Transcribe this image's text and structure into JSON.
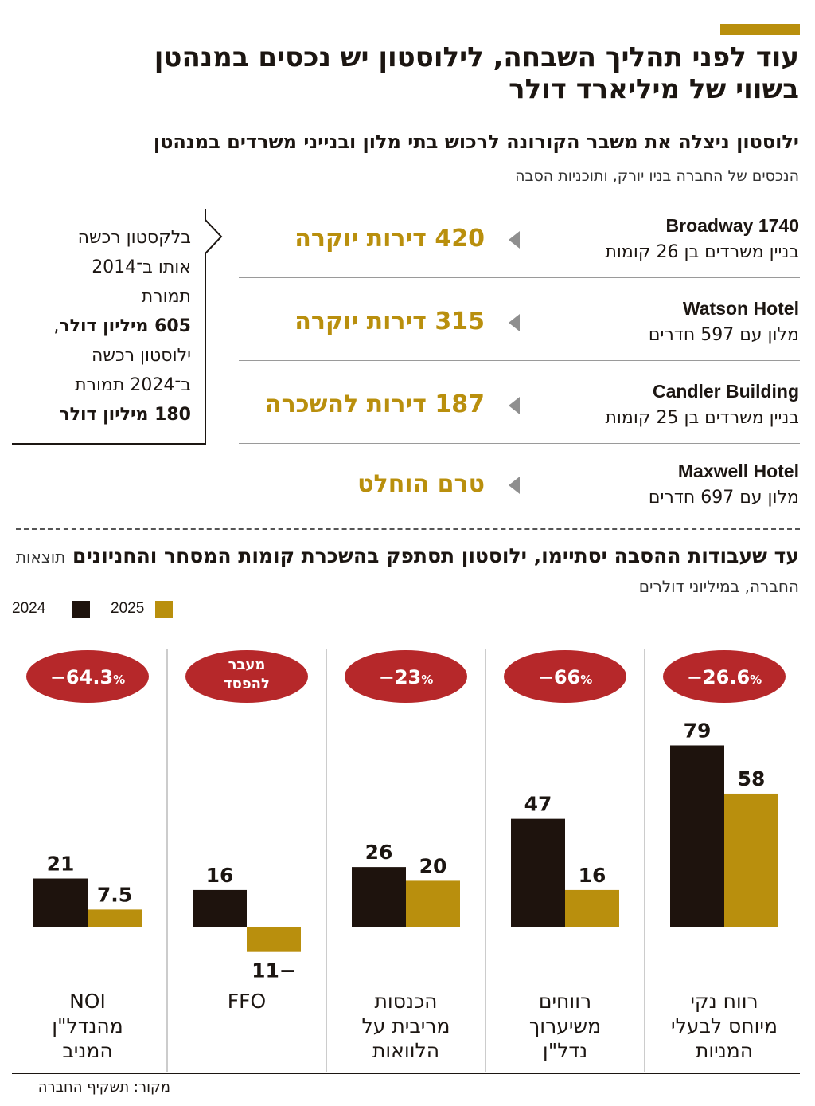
{
  "title": "עוד לפני תהליך השבחה, לילוסטון יש נכסים במנהטן בשווי של מיליארד דולר",
  "section1": {
    "title": "ילוסטון ניצלה את משבר הקורונה לרכוש בתי מלון ובנייני משרדים במנהטן",
    "note": "הנכסים של החברה בניו יורק, ותוכניות הסבה",
    "properties": [
      {
        "name": "Broadway 1740",
        "desc": "בניין משרדים בן 26 קומות",
        "plan": "420 דירות יוקרה"
      },
      {
        "name": "Watson Hotel",
        "desc": "מלון עם 597 חדרים",
        "plan": "315 דירות יוקרה"
      },
      {
        "name": "Candler Building",
        "desc": "בניין משרדים בן 25 קומות",
        "plan": "187 דירות להשכרה"
      },
      {
        "name": "Maxwell Hotel",
        "desc": "מלון עם 697 חדרים",
        "plan": "טרם הוחלט"
      }
    ],
    "callout": {
      "line1": "בלקסטון רכשה",
      "line2": "אותו ב־2014",
      "line3": "תמורת",
      "line4_bold": "605 מיליון דולר",
      "line4_rest": ",",
      "line5": "ילוסטון רכשה",
      "line6": "ב־2024 תמורת",
      "line7_bold": "180 מיליון דולר"
    }
  },
  "section2": {
    "title": "עד שעבודות ההסבה יסתיימו, ילוסטון תסתפק בהשכרת קומות המסחר והחניונים",
    "note": "תוצאות החברה, במיליוני דולרים"
  },
  "colors": {
    "y2024": "#1e130d",
    "y2025": "#b98f0d",
    "badge": "#b6282a",
    "accent": "#b98f0d"
  },
  "chart_data": {
    "type": "bar",
    "categories": [
      "רווח נקי מיוחס לבעלי המניות",
      "רווחים משיערוך נדל\"ן",
      "הכנסות מריבית על הלוואות",
      "FFO",
      "NOI מהנדל\"ן המניב"
    ],
    "category_lines": [
      [
        "רווח נקי",
        "מיוחס לבעלי",
        "המניות"
      ],
      [
        "רווחים",
        "משיערוך",
        "נדל\"ן"
      ],
      [
        "הכנסות",
        "מריבית על",
        "הלוואות"
      ],
      [
        "FFO"
      ],
      [
        "NOI",
        "מהנדל\"ן",
        "המניב"
      ]
    ],
    "series": [
      {
        "name": "2024",
        "values": [
          79,
          47,
          26,
          16,
          21
        ]
      },
      {
        "name": "2025",
        "values": [
          58,
          16,
          20,
          -11,
          7.5
        ]
      }
    ],
    "value_labels": {
      "2024": [
        "79",
        "47",
        "26",
        "16",
        "21"
      ],
      "2025": [
        "58",
        "16",
        "20",
        "−11",
        "7.5"
      ]
    },
    "badges": [
      {
        "num": "−26.6",
        "pct": "%"
      },
      {
        "num": "−66",
        "pct": "%"
      },
      {
        "num": "−23",
        "pct": "%"
      },
      {
        "lines": [
          "מעבר",
          "להפסד"
        ]
      },
      {
        "num": "−64.3",
        "pct": "%"
      }
    ],
    "legend": [
      "2025",
      "2024"
    ],
    "legend_placement": "top-left",
    "grid": false
  },
  "source": "מקור: תשקיף החברה"
}
